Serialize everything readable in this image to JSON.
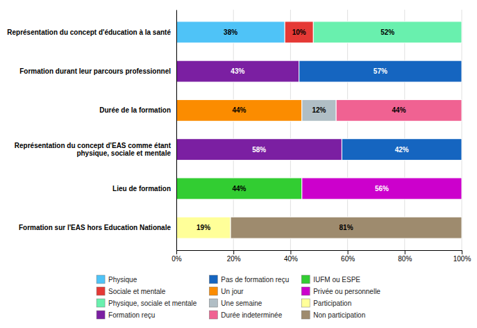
{
  "chart_data": {
    "type": "bar",
    "orientation": "horizontal",
    "stacked": true,
    "data_labels": true,
    "grid": true,
    "legend": "bottom",
    "categories": [
      "Représentation du concept d'éducation à la santé",
      "Formation durant leur parcours professionnel",
      "Durée de la formation",
      "Représentation du concept d'EAS comme étant\nphysique, sociale et mentale",
      "Lieu de formation",
      "Formation sur l'EAS hors Education Nationale"
    ],
    "series": [
      {
        "name": "Physique",
        "color": "#4FC3F7",
        "values": [
          38,
          null,
          null,
          null,
          null,
          null
        ],
        "value_labels": [
          "38%",
          null,
          null,
          null,
          null,
          null
        ]
      },
      {
        "name": "Sociale et mentale",
        "color": "#E53935",
        "values": [
          10,
          null,
          null,
          null,
          null,
          null
        ],
        "value_labels": [
          "10%",
          null,
          null,
          null,
          null,
          null
        ]
      },
      {
        "name": "Physique, sociale et mentale",
        "color": "#69F0AE",
        "values": [
          52,
          null,
          null,
          null,
          null,
          null
        ],
        "value_labels": [
          "52%",
          null,
          null,
          null,
          null,
          null
        ]
      },
      {
        "name": "Formation reçu",
        "color": "#7B1FA2",
        "values": [
          null,
          43,
          null,
          58,
          null,
          null
        ],
        "value_labels": [
          null,
          "43%",
          null,
          "58%",
          null,
          null
        ]
      },
      {
        "name": "Pas de formation reçu",
        "color": "#1565C0",
        "values": [
          null,
          57,
          null,
          42,
          null,
          null
        ],
        "value_labels": [
          null,
          "57%",
          null,
          "42%",
          null,
          null
        ]
      },
      {
        "name": "Un jour",
        "color": "#FB8C00",
        "values": [
          null,
          null,
          44,
          null,
          null,
          null
        ],
        "value_labels": [
          null,
          null,
          "44%",
          null,
          null,
          null
        ]
      },
      {
        "name": "Une semaine",
        "color": "#B0BEC5",
        "values": [
          null,
          null,
          12,
          null,
          null,
          null
        ],
        "value_labels": [
          null,
          null,
          "12%",
          null,
          null,
          null
        ]
      },
      {
        "name": "Durée indeterminée",
        "color": "#F06292",
        "values": [
          null,
          null,
          44,
          null,
          null,
          null
        ],
        "value_labels": [
          null,
          null,
          "44%",
          null,
          null,
          null
        ]
      },
      {
        "name": "IUFM ou ESPE",
        "color": "#32CD32",
        "values": [
          null,
          null,
          null,
          null,
          44,
          null
        ],
        "value_labels": [
          null,
          null,
          null,
          null,
          "44%",
          null
        ]
      },
      {
        "name": "Privée ou personnelle",
        "color": "#CC00CC",
        "values": [
          null,
          null,
          null,
          null,
          56,
          null
        ],
        "value_labels": [
          null,
          null,
          null,
          null,
          "56%",
          null
        ]
      },
      {
        "name": "Participation",
        "color": "#FFFF99",
        "values": [
          null,
          null,
          null,
          null,
          null,
          19
        ],
        "value_labels": [
          null,
          null,
          null,
          null,
          null,
          "19%"
        ]
      },
      {
        "name": "Non participation",
        "color": "#9E8B6E",
        "values": [
          null,
          null,
          null,
          null,
          null,
          81
        ],
        "value_labels": [
          null,
          null,
          null,
          null,
          null,
          "81%"
        ]
      }
    ],
    "xlim": [
      0,
      100
    ],
    "xticks": [
      {
        "value": 0,
        "label": "0%"
      },
      {
        "value": 20,
        "label": "20%"
      },
      {
        "value": 40,
        "label": "40%"
      },
      {
        "value": 60,
        "label": "60%"
      },
      {
        "value": 80,
        "label": "80%"
      },
      {
        "value": 100,
        "label": "100%"
      }
    ]
  }
}
